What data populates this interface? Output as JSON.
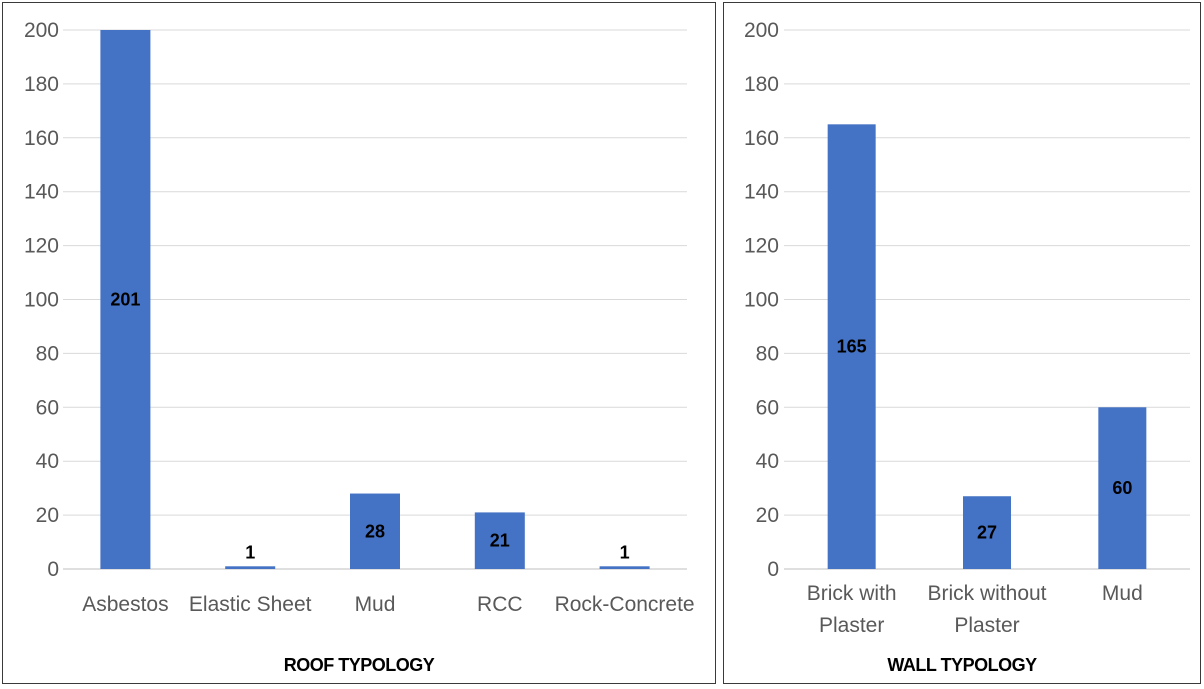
{
  "chart_data": [
    {
      "type": "bar",
      "title": "",
      "xlabel": "ROOF TYPOLOGY",
      "ylabel": "",
      "ylim": [
        0,
        200
      ],
      "yticks": [
        0,
        20,
        40,
        60,
        80,
        100,
        120,
        140,
        160,
        180,
        200
      ],
      "categories": [
        [
          "Asbestos"
        ],
        [
          "Elastic Sheet"
        ],
        [
          "Mud"
        ],
        [
          "RCC"
        ],
        [
          "Rock-Concrete"
        ]
      ],
      "values": [
        201,
        1,
        28,
        21,
        1
      ],
      "grid": true,
      "bar_color": "#4472c4"
    },
    {
      "type": "bar",
      "title": "",
      "xlabel": "WALL TYPOLOGY",
      "ylabel": "",
      "ylim": [
        0,
        200
      ],
      "yticks": [
        0,
        20,
        40,
        60,
        80,
        100,
        120,
        140,
        160,
        180,
        200
      ],
      "categories": [
        [
          "Brick with",
          "Plaster"
        ],
        [
          "Brick without",
          "Plaster"
        ],
        [
          "Mud"
        ]
      ],
      "values": [
        165,
        27,
        60
      ],
      "grid": true,
      "bar_color": "#4472c4"
    }
  ]
}
